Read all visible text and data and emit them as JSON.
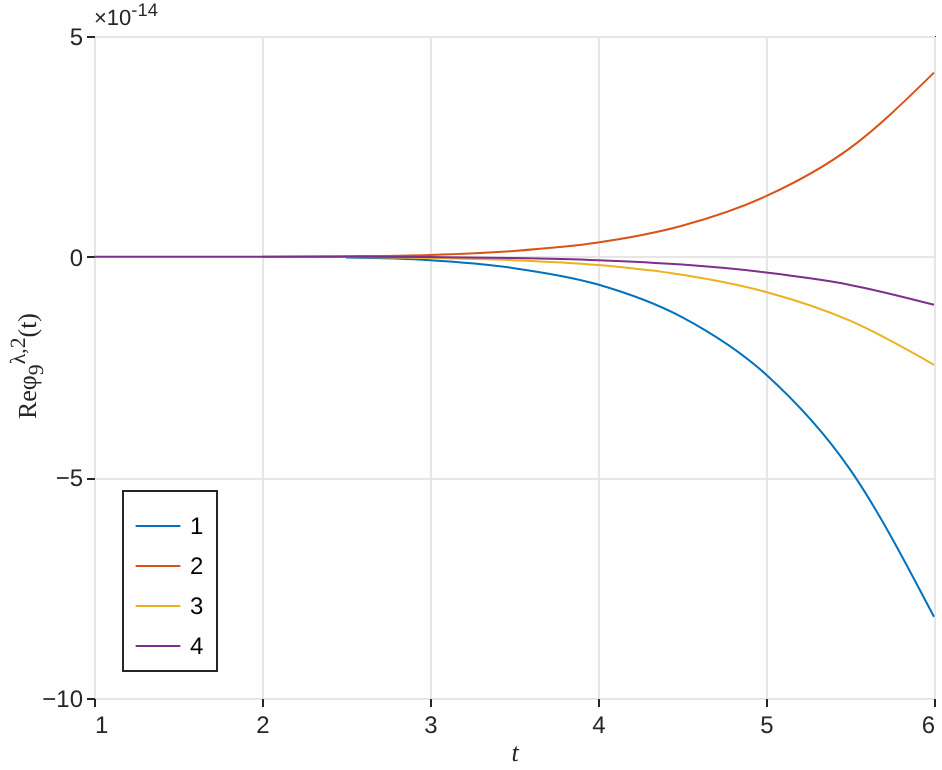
{
  "chart_data": {
    "type": "line",
    "xlabel": "t",
    "ylabel": "Reφ$_{9}$$^{λ,2}$(t)",
    "annotations": [
      "×10$^{-14}$"
    ],
    "x": [
      1,
      1.5,
      2,
      2.5,
      3,
      3.5,
      4,
      4.5,
      5,
      5.5,
      6
    ],
    "series": [
      {
        "name": "1",
        "color": "#0072bd",
        "values": [
          null,
          null,
          null,
          -0.02,
          -0.08,
          -0.26,
          -0.63,
          -1.37,
          -2.67,
          -4.82,
          -8.16
        ]
      },
      {
        "name": "2",
        "color": "#d95319",
        "values": [
          null,
          null,
          0,
          0.01,
          0.04,
          0.13,
          0.32,
          0.7,
          1.37,
          2.46,
          4.17
        ]
      },
      {
        "name": "3",
        "color": "#edb120",
        "values": [
          null,
          null,
          null,
          -0.01,
          -0.03,
          -0.08,
          -0.19,
          -0.41,
          -0.8,
          -1.45,
          -2.45
        ]
      },
      {
        "name": "4",
        "color": "#7e2f8e",
        "values": [
          0,
          0,
          0,
          0,
          -0.01,
          -0.03,
          -0.08,
          -0.18,
          -0.36,
          -0.64,
          -1.09
        ]
      }
    ],
    "xlim": [
      1,
      6
    ],
    "xticks": [
      1,
      2,
      3,
      4,
      5,
      6
    ],
    "ylim": [
      -10,
      5
    ],
    "yticks": [
      -10,
      -5,
      0,
      5
    ],
    "grid": true,
    "legend": "bottom left",
    "line_style": "solid"
  }
}
